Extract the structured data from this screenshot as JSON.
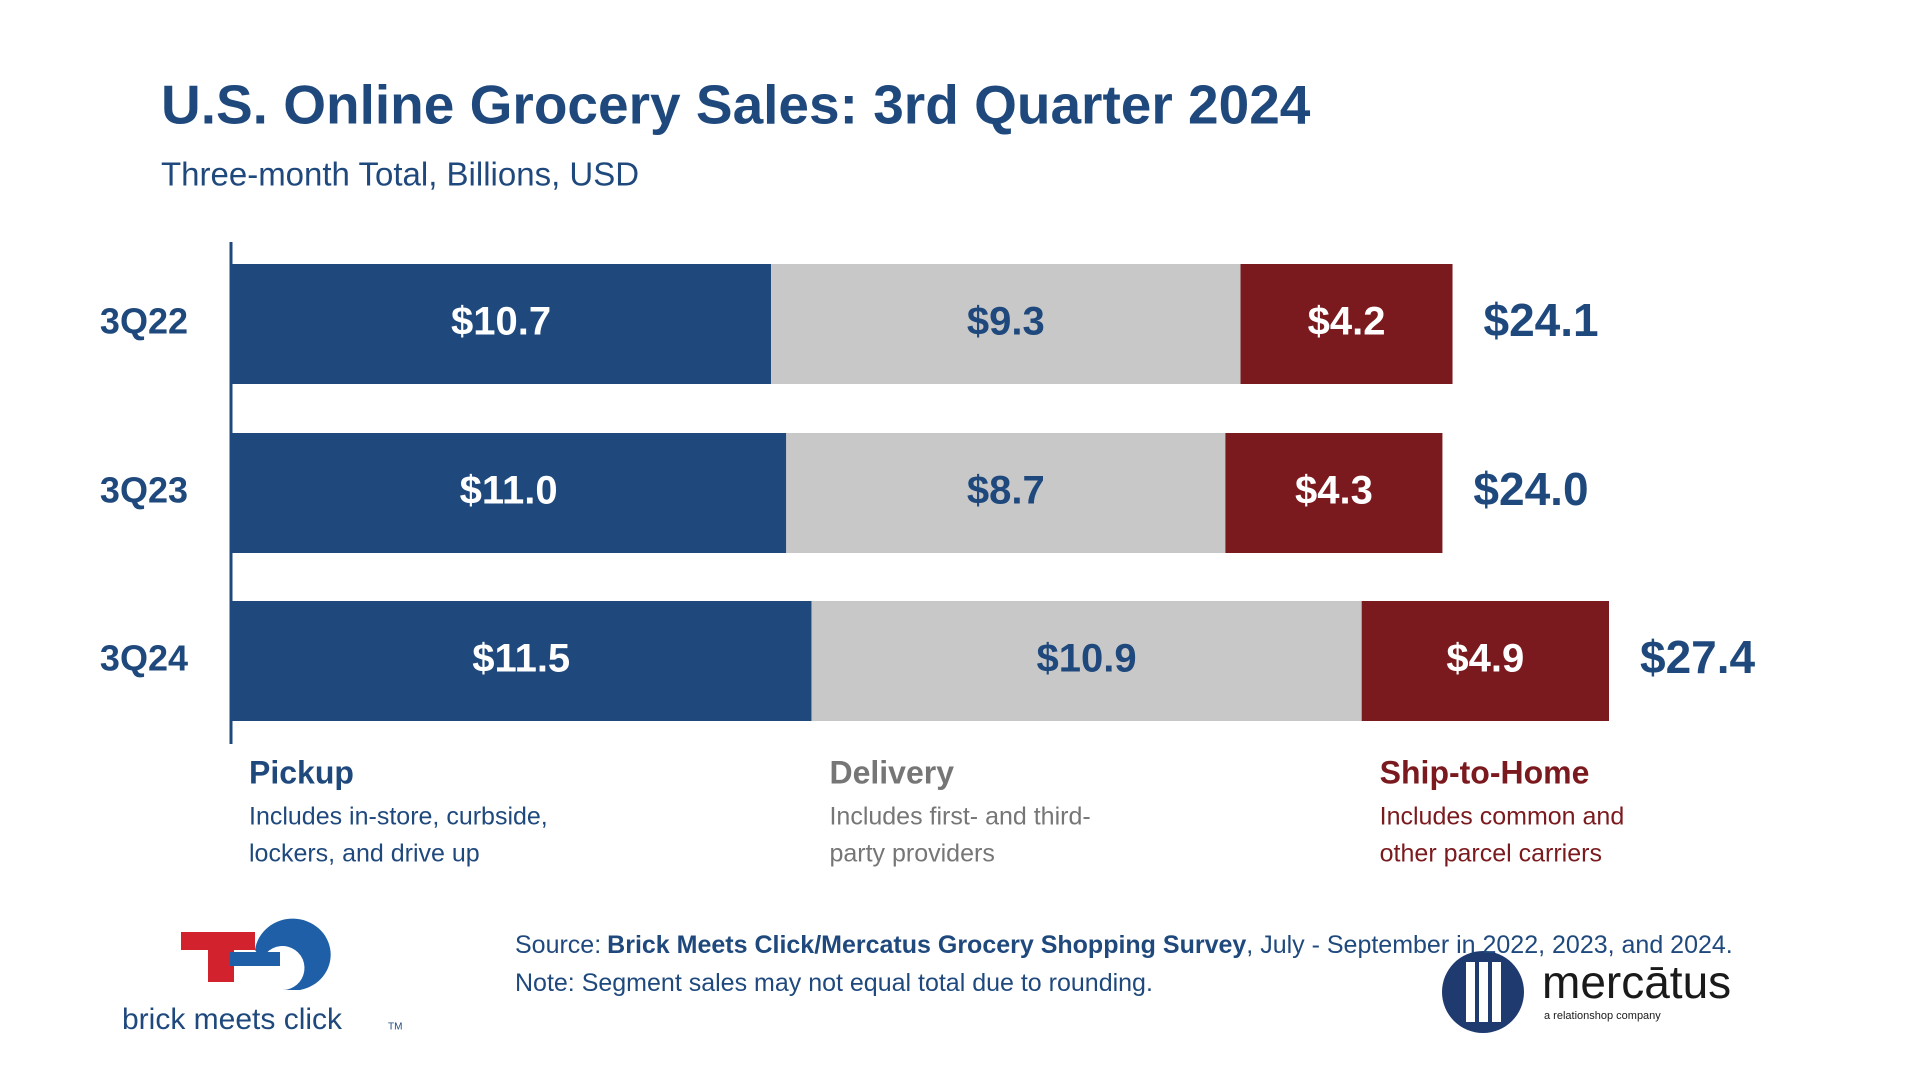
{
  "chart_data": {
    "type": "stacked-bar-horizontal",
    "title": "U.S. Online Grocery Sales: 3rd Quarter 2024",
    "subtitle": "Three-month Total, Billions, USD",
    "categories": [
      "3Q22",
      "3Q23",
      "3Q24"
    ],
    "series": [
      {
        "name": "Pickup",
        "color": "#1f497d",
        "label_color": "#ffffff",
        "legend_color": "#1f497d",
        "description": [
          "Includes in-store, curbside,",
          "lockers, and drive up"
        ],
        "values": [
          10.7,
          11.0,
          11.5
        ],
        "value_labels": [
          "$10.7",
          "$11.0",
          "$11.5"
        ]
      },
      {
        "name": "Delivery",
        "color": "#c8c8c8",
        "label_color": "#1f497d",
        "legend_color": "#767676",
        "description": [
          "Includes first- and third-",
          "party providers"
        ],
        "values": [
          9.3,
          8.7,
          10.9
        ],
        "value_labels": [
          "$9.3",
          "$8.7",
          "$10.9"
        ]
      },
      {
        "name": "Ship-to-Home",
        "color": "#7b1a1e",
        "label_color": "#ffffff",
        "legend_color": "#7b1a1e",
        "description": [
          "Includes common and",
          "other parcel carriers"
        ],
        "values": [
          4.2,
          4.3,
          4.9
        ],
        "value_labels": [
          "$4.2",
          "$4.3",
          "$4.9"
        ]
      }
    ],
    "totals": {
      "values": [
        24.1,
        24.0,
        27.4
      ],
      "value_labels": [
        "$24.1",
        "$24.0",
        "$27.4"
      ]
    },
    "source": {
      "label": "Source:",
      "name": "Brick Meets Click/Mercatus Grocery Shopping Survey",
      "text": ", July - September in 2022, 2023, and 2024."
    },
    "note": "Note: Segment sales may not equal total due to rounding.",
    "logos": {
      "left": "brick meets click",
      "left_mark": "TM",
      "right": "mercātus",
      "right_tagline": "a relationshop company"
    }
  }
}
